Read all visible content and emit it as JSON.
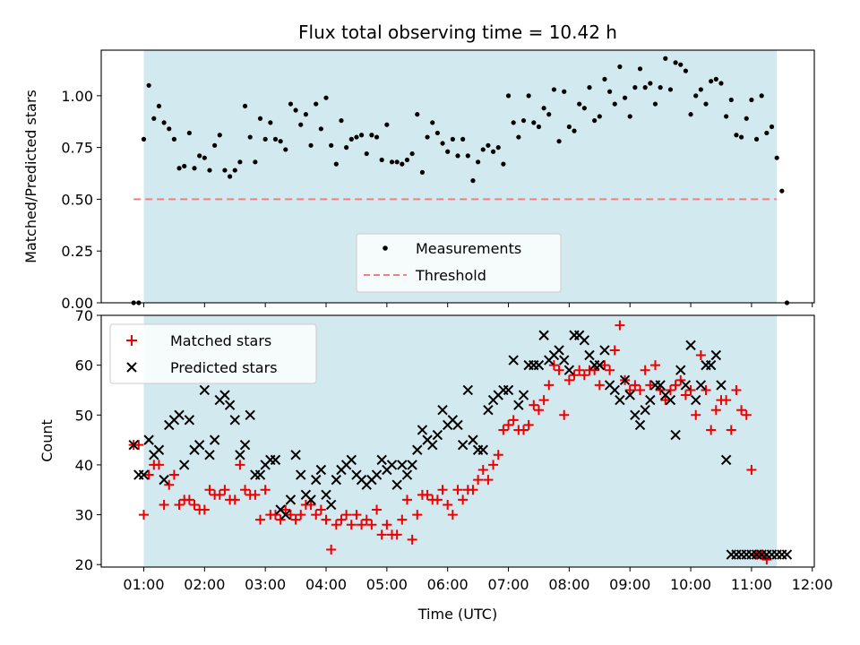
{
  "title": "Flux total observing time = 10.42 h",
  "colors": {
    "shade": "#d3e9f0",
    "threshold": "#f08080",
    "measurement": "#000000",
    "matched": "#ee0000",
    "predicted": "#000000"
  },
  "chart_data": [
    {
      "type": "scatter",
      "panel": "top",
      "ylabel": "Matched/Predicted stars",
      "ylim": [
        0,
        1.22
      ],
      "yticks": [
        0.0,
        0.25,
        0.5,
        0.75,
        1.0
      ],
      "ytick_labels": [
        "0.00",
        "0.25",
        "0.50",
        "0.75",
        "1.00"
      ],
      "shaded_span": [
        "01:00",
        "11:25"
      ],
      "legend": {
        "position": "lower-center",
        "entries": [
          "Measurements",
          "Threshold"
        ]
      },
      "threshold": {
        "name": "Threshold",
        "y": 0.5,
        "x_range": [
          "00:50",
          "11:25"
        ]
      },
      "series": [
        {
          "name": "Measurements",
          "x_minutes": [
            50,
            55,
            60,
            65,
            70,
            75,
            80,
            85,
            90,
            95,
            100,
            105,
            110,
            115,
            120,
            125,
            130,
            135,
            140,
            145,
            150,
            155,
            160,
            165,
            170,
            175,
            180,
            185,
            190,
            195,
            200,
            205,
            210,
            215,
            220,
            225,
            230,
            235,
            240,
            245,
            250,
            255,
            260,
            265,
            270,
            275,
            280,
            285,
            290,
            295,
            300,
            305,
            310,
            315,
            320,
            325,
            330,
            335,
            340,
            345,
            350,
            355,
            360,
            365,
            370,
            375,
            380,
            385,
            390,
            395,
            400,
            405,
            410,
            415,
            420,
            425,
            430,
            435,
            440,
            445,
            450,
            455,
            460,
            465,
            470,
            475,
            480,
            485,
            490,
            495,
            500,
            505,
            510,
            515,
            520,
            525,
            530,
            535,
            540,
            545,
            550,
            555,
            560,
            565,
            570,
            575,
            580,
            585,
            590,
            595,
            600,
            605,
            610,
            615,
            620,
            625,
            630,
            635,
            640,
            645,
            650,
            655,
            660,
            665,
            670,
            675,
            680,
            685,
            690,
            695
          ],
          "y": [
            0.0,
            0.0,
            0.79,
            1.05,
            0.89,
            0.95,
            0.87,
            0.84,
            0.79,
            0.65,
            0.66,
            0.82,
            0.65,
            0.71,
            0.7,
            0.64,
            0.76,
            0.81,
            0.64,
            0.61,
            0.64,
            0.68,
            0.95,
            0.8,
            0.68,
            0.89,
            0.79,
            0.87,
            0.79,
            0.78,
            0.74,
            0.96,
            0.93,
            0.86,
            0.91,
            0.76,
            0.96,
            0.84,
            0.99,
            0.76,
            0.67,
            0.88,
            0.75,
            0.79,
            0.8,
            0.81,
            0.72,
            0.81,
            0.8,
            0.69,
            0.86,
            0.68,
            0.68,
            0.67,
            0.69,
            0.72,
            0.91,
            0.63,
            0.8,
            0.87,
            0.82,
            0.77,
            0.73,
            0.79,
            0.71,
            0.79,
            0.71,
            0.59,
            0.68,
            0.74,
            0.76,
            0.73,
            0.75,
            0.67,
            1.0,
            0.87,
            0.8,
            0.88,
            1.0,
            0.87,
            0.85,
            0.94,
            0.91,
            1.03,
            0.78,
            1.02,
            0.85,
            0.83,
            0.96,
            0.94,
            1.04,
            0.88,
            0.9,
            1.08,
            1.02,
            0.96,
            1.14,
            0.99,
            0.9,
            1.04,
            1.13,
            1.04,
            1.06,
            0.96,
            1.04,
            1.18,
            1.03,
            1.16,
            1.15,
            1.12,
            0.91,
            1.0,
            1.03,
            0.96,
            1.07,
            1.08,
            1.06,
            0.9,
            0.98,
            0.81,
            0.8,
            0.89,
            0.98,
            0.79,
            1.0,
            0.82,
            0.85,
            0.7,
            0.54,
            0.0
          ]
        }
      ]
    },
    {
      "type": "scatter",
      "panel": "bottom",
      "xlabel": "Time (UTC)",
      "ylabel": "Count",
      "ylim": [
        19.5,
        70
      ],
      "yticks": [
        20,
        30,
        40,
        50,
        60,
        70
      ],
      "ytick_labels": [
        "20",
        "30",
        "40",
        "50",
        "60",
        "70"
      ],
      "xlim": [
        "00:18",
        "12:02"
      ],
      "xtick_labels": [
        "01:00",
        "02:00",
        "03:00",
        "04:00",
        "05:00",
        "06:00",
        "07:00",
        "08:00",
        "09:00",
        "10:00",
        "11:00",
        "12:00"
      ],
      "shaded_span": [
        "01:00",
        "11:25"
      ],
      "legend": {
        "position": "top-left",
        "entries": [
          "Matched stars",
          "Predicted stars"
        ]
      },
      "x_minutes": [
        50,
        55,
        60,
        65,
        70,
        75,
        80,
        85,
        90,
        95,
        100,
        105,
        110,
        115,
        120,
        125,
        130,
        135,
        140,
        145,
        150,
        155,
        160,
        165,
        170,
        175,
        180,
        185,
        190,
        195,
        200,
        205,
        210,
        215,
        220,
        225,
        230,
        235,
        240,
        245,
        250,
        255,
        260,
        265,
        270,
        275,
        280,
        285,
        290,
        295,
        300,
        305,
        310,
        315,
        320,
        325,
        330,
        335,
        340,
        345,
        350,
        355,
        360,
        365,
        370,
        375,
        380,
        385,
        390,
        395,
        400,
        405,
        410,
        415,
        420,
        425,
        430,
        435,
        440,
        445,
        450,
        455,
        460,
        465,
        470,
        475,
        480,
        485,
        490,
        495,
        500,
        505,
        510,
        515,
        520,
        525,
        530,
        535,
        540,
        545,
        550,
        555,
        560,
        565,
        570,
        575,
        580,
        585,
        590,
        595,
        600,
        605,
        610,
        615,
        620,
        625,
        630,
        635,
        640,
        645,
        650,
        655,
        660,
        665,
        670,
        675,
        680,
        685,
        690,
        695
      ],
      "series": [
        {
          "name": "Matched stars",
          "marker": "plus",
          "y": [
            44,
            44,
            30,
            38,
            40,
            40,
            32,
            36,
            38,
            32,
            33,
            33,
            32,
            31,
            31,
            35,
            34,
            34,
            35,
            33,
            33,
            40,
            35,
            34,
            34,
            29,
            35,
            30,
            30,
            29,
            31,
            30,
            29,
            30,
            32,
            32,
            30,
            31,
            29,
            23,
            28,
            29,
            30,
            28,
            30,
            28,
            29,
            28,
            31,
            26,
            28,
            26,
            26,
            29,
            33,
            25,
            30,
            34,
            34,
            33,
            33,
            35,
            32,
            30,
            35,
            33,
            35,
            35,
            37,
            39,
            37,
            40,
            42,
            47,
            48,
            49,
            47,
            47,
            48,
            52,
            51,
            53,
            56,
            60,
            59,
            50,
            57,
            58,
            59,
            58,
            59,
            59,
            56,
            60,
            59,
            63,
            68,
            57,
            55,
            56,
            55,
            59,
            56,
            60,
            55,
            53,
            55,
            56,
            57,
            54,
            55,
            50,
            62,
            55,
            47,
            51,
            53,
            53,
            47,
            55,
            51,
            50,
            39,
            22,
            22,
            21
          ]
        },
        {
          "name": "Predicted stars",
          "marker": "x",
          "y": [
            44,
            38,
            38,
            45,
            42,
            43,
            37,
            48,
            49,
            50,
            40,
            49,
            43,
            44,
            55,
            42,
            45,
            53,
            54,
            52,
            49,
            42,
            44,
            50,
            38,
            38,
            40,
            41,
            41,
            31,
            30,
            33,
            42,
            38,
            34,
            33,
            37,
            39,
            34,
            32,
            37,
            39,
            40,
            41,
            38,
            37,
            36,
            37,
            38,
            41,
            39,
            40,
            36,
            40,
            38,
            40,
            43,
            47,
            45,
            44,
            46,
            51,
            48,
            49,
            48,
            44,
            55,
            45,
            43,
            43,
            51,
            53,
            54,
            55,
            55,
            61,
            52,
            54,
            60,
            60,
            60,
            66,
            61,
            62,
            63,
            61,
            59,
            66,
            66,
            65,
            62,
            60,
            60,
            63,
            56,
            55,
            53,
            57,
            54,
            50,
            48,
            51,
            53,
            56,
            56,
            54,
            53,
            46,
            59,
            56,
            64,
            53,
            56,
            60,
            60,
            62,
            56,
            41,
            22,
            22,
            22,
            22,
            22,
            22,
            22,
            22,
            22,
            22,
            22,
            22
          ]
        }
      ]
    }
  ]
}
